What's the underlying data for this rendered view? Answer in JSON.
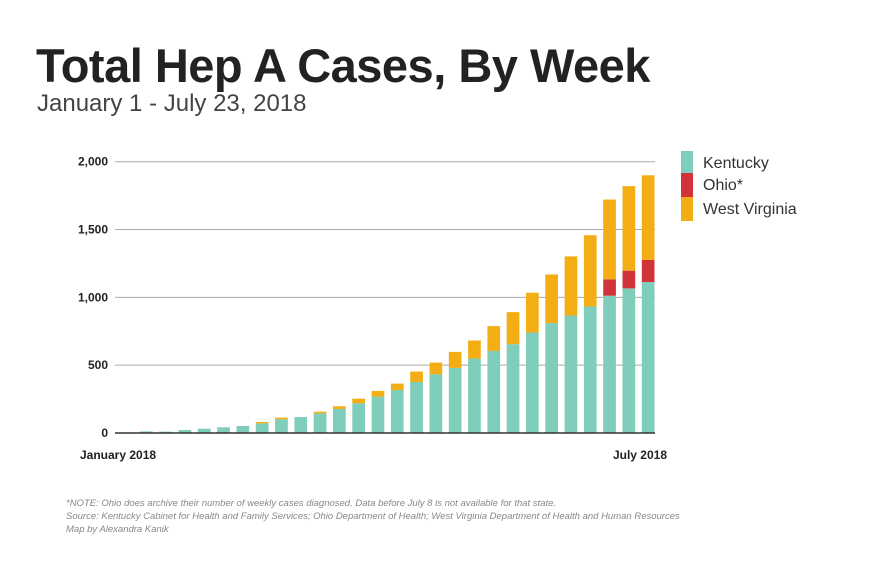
{
  "chart_data": {
    "type": "bar",
    "stacked": true,
    "title": "Total Hep A Cases, By Week",
    "subtitle": "January 1 - July 23, 2018",
    "x_tick_labels": [
      "January 2018",
      "July 2018"
    ],
    "y_ticks": [
      0,
      500,
      1000,
      1500,
      2000
    ],
    "y_tick_labels": [
      "0",
      "500",
      "1,000",
      "1,500",
      "2,000"
    ],
    "ylim": [
      0,
      2000
    ],
    "grid": true,
    "legend_position": "right",
    "series": [
      {
        "name": "Kentucky",
        "color": "#7fcdbb",
        "values": [
          12,
          10,
          22,
          32,
          42,
          52,
          71,
          101,
          118,
          145,
          177,
          219,
          268,
          317,
          376,
          433,
          480,
          549,
          605,
          655,
          741,
          810,
          866,
          933,
          1012,
          1066,
          1113
        ]
      },
      {
        "name": "Ohio*",
        "color": "#d13438",
        "values": [
          0,
          0,
          0,
          0,
          0,
          0,
          0,
          0,
          0,
          0,
          0,
          0,
          0,
          0,
          0,
          0,
          0,
          0,
          0,
          0,
          0,
          0,
          0,
          0,
          121,
          131,
          163
        ]
      },
      {
        "name": "West Virginia",
        "color": "#f2ae14",
        "values": [
          0,
          0,
          0,
          0,
          0,
          0,
          10,
          12,
          0,
          12,
          20,
          34,
          42,
          47,
          77,
          86,
          118,
          133,
          183,
          236,
          293,
          359,
          436,
          525,
          588,
          623,
          624
        ]
      }
    ]
  },
  "footnotes": {
    "note": "*NOTE: Ohio does archive their number of weekly cases diagnosed. Data before July 8 is not available for that state.",
    "source": "Source: Kentucky Cabinet for Health and Family Services; Ohio Department of Health; West Virginia Department of Health and Human Resources",
    "credit": "Map by Alexandra Kanik"
  }
}
